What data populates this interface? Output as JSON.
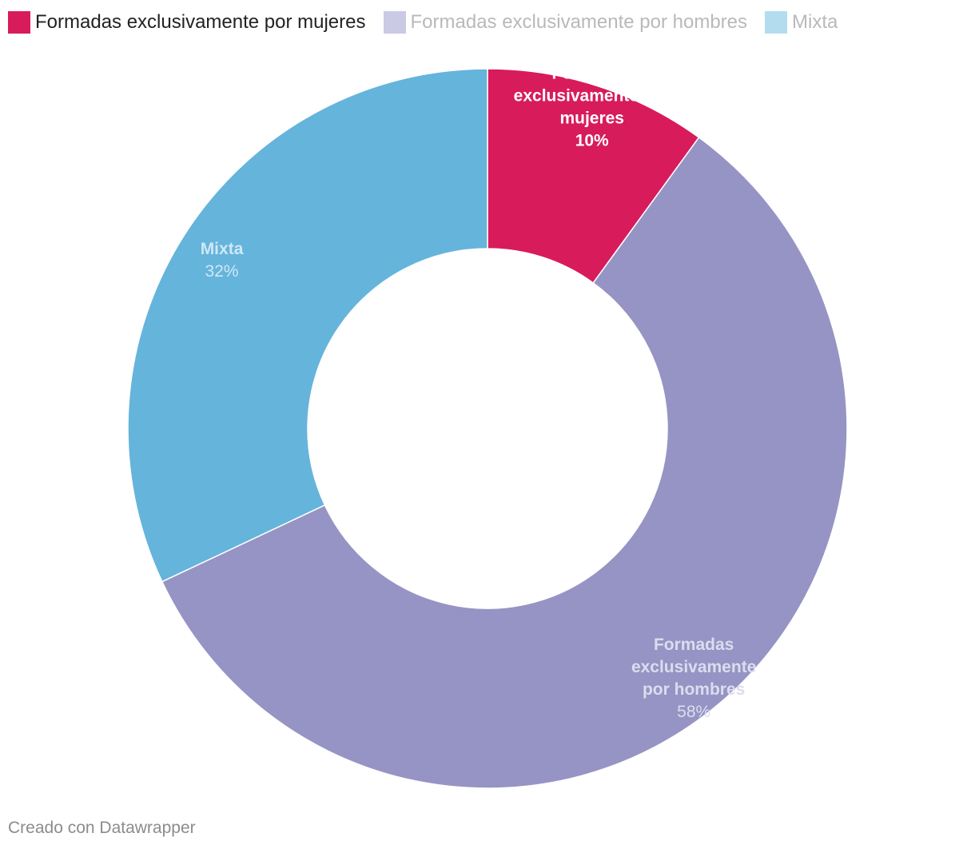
{
  "chart_data": {
    "type": "pie",
    "variant": "donut",
    "start_angle_deg": 0,
    "direction": "clockwise",
    "slices": [
      {
        "id": "mujeres",
        "legend_label": "Formadas exclusivamente por mujeres",
        "label_lines": [
          "Formadas",
          "exclusivamente por",
          "mujeres"
        ],
        "value": 10,
        "value_label": "10%",
        "color": "#d81b5b",
        "legend_text_color": "#222222",
        "label_color": "#ffffff",
        "value_bold": true
      },
      {
        "id": "hombres",
        "legend_label": "Formadas exclusivamente por hombres",
        "label_lines": [
          "Formadas",
          "exclusivamente",
          "por hombres"
        ],
        "value": 58,
        "value_label": "58%",
        "color": "#9694c4",
        "legend_swatch_color": "#cacae4",
        "legend_text_color": "#b9b9b9",
        "label_color": "#dcdcee",
        "value_bold": false
      },
      {
        "id": "mixta",
        "legend_label": "Mixta",
        "label_lines": [
          "Mixta"
        ],
        "value": 32,
        "value_label": "32%",
        "color": "#65b4db",
        "legend_swatch_color": "#b3dcef",
        "legend_text_color": "#b9b9b9",
        "label_color": "#cfe8f5",
        "value_bold": false
      }
    ]
  },
  "footer": {
    "credit": "Creado con Datawrapper"
  }
}
